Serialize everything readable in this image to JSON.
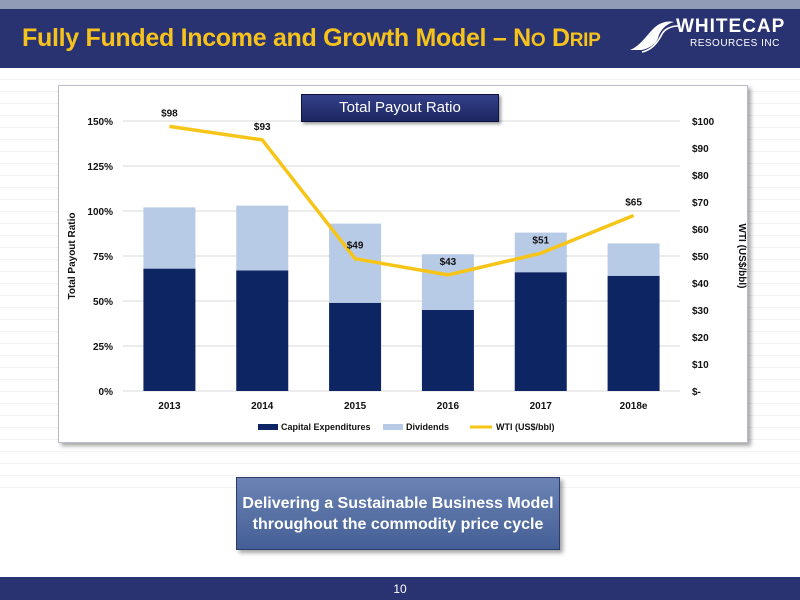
{
  "slide": {
    "title_main": "Fully Funded Income and Growth Model – N",
    "title_sc1": "O",
    "title_mid": " D",
    "title_sc2": "RIP",
    "logo_top": "WHITECAP",
    "logo_bottom": "RESOURCES INC",
    "callout_line1": "Delivering a Sustainable Business Model",
    "callout_line2": "throughout the commodity price cycle",
    "page_number": "10"
  },
  "colors": {
    "header": "#2a3372",
    "title": "#f6c21c",
    "capex": "#0d2563",
    "dividends": "#b8cbe6",
    "wti": "#f7c418"
  },
  "chart_data": {
    "type": "bar",
    "title": "Total Payout Ratio",
    "categories": [
      "2013",
      "2014",
      "2015",
      "2016",
      "2017",
      "2018e"
    ],
    "ylabel": "Total Payout Ratio",
    "y2label": "WTI (US$/bbl)",
    "ylim": [
      0,
      150
    ],
    "y2lim": [
      0,
      100
    ],
    "yticks": [
      "0%",
      "25%",
      "50%",
      "75%",
      "100%",
      "125%",
      "150%"
    ],
    "y2ticks": [
      "$-",
      "$10",
      "$20",
      "$30",
      "$40",
      "$50",
      "$60",
      "$70",
      "$80",
      "$90",
      "$100"
    ],
    "stacked": true,
    "series": [
      {
        "name": "Capital Expenditures",
        "kind": "bar",
        "values": [
          68,
          67,
          49,
          45,
          66,
          64
        ]
      },
      {
        "name": "Dividends",
        "kind": "bar",
        "values": [
          34,
          36,
          44,
          31,
          22,
          18
        ]
      },
      {
        "name": "WTI (US$/bbl)",
        "kind": "line",
        "axis": "secondary",
        "values": [
          98,
          93,
          49,
          43,
          51,
          65
        ],
        "labels": [
          "$98",
          "$93",
          "$49",
          "$43",
          "$51",
          "$65"
        ]
      }
    ],
    "legend_position": "bottom",
    "grid": true
  }
}
